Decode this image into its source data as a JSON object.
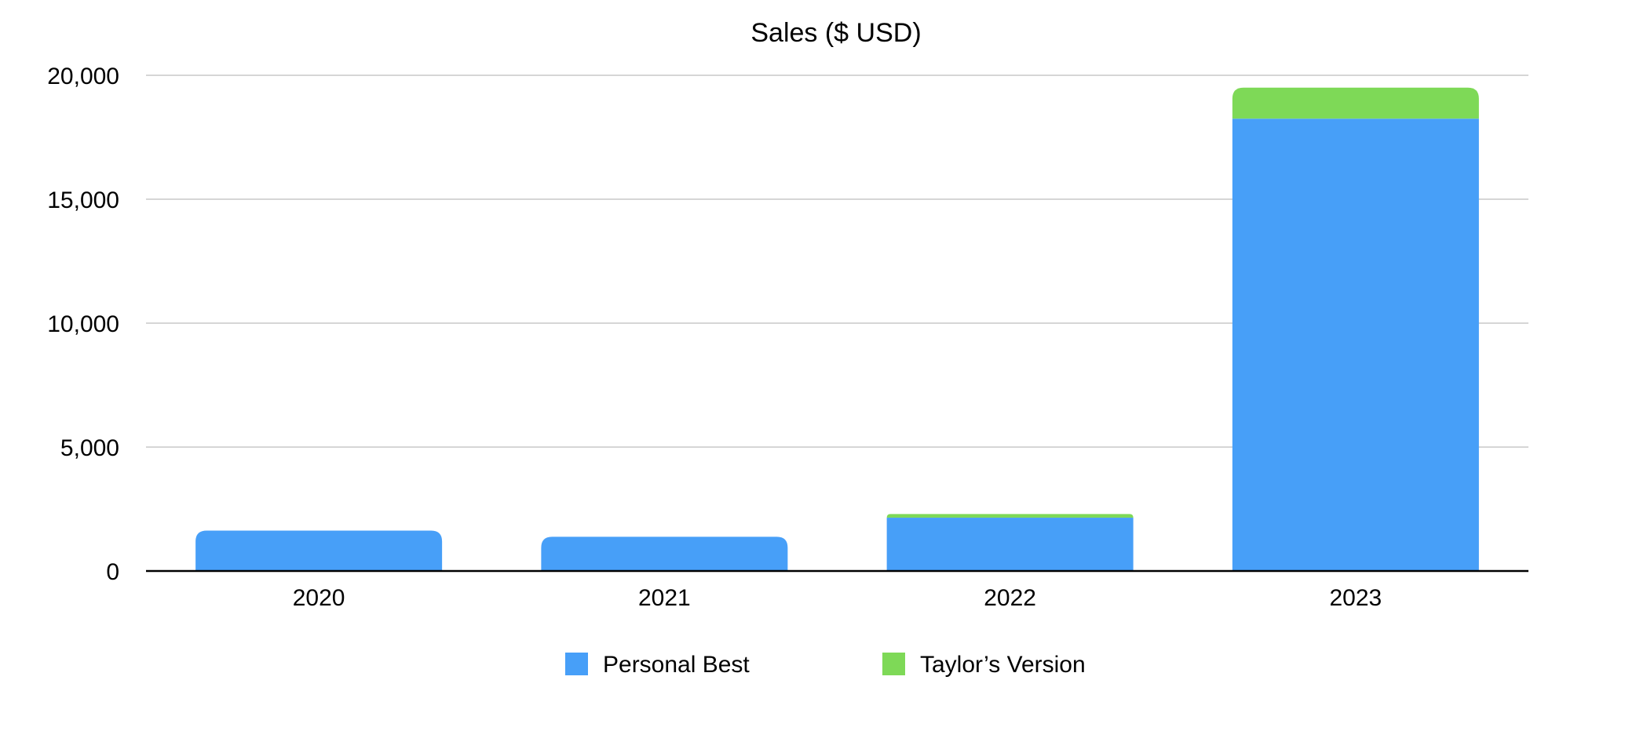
{
  "chart_data": {
    "type": "bar",
    "stacked": true,
    "title": "Sales ($ USD)",
    "xlabel": "",
    "ylabel": "",
    "categories": [
      "2020",
      "2021",
      "2022",
      "2023"
    ],
    "series": [
      {
        "name": "Personal Best",
        "color": "#479ff8",
        "values": [
          1630,
          1380,
          2150,
          18250
        ]
      },
      {
        "name": "Taylor’s Version",
        "color": "#7ed957",
        "values": [
          0,
          0,
          150,
          1250
        ]
      }
    ],
    "ylim": [
      0,
      20000
    ],
    "yticks": [
      0,
      5000,
      10000,
      15000,
      20000
    ],
    "ytick_labels": [
      "0",
      "5,000",
      "10,000",
      "15,000",
      "20,000"
    ],
    "grid": true,
    "legend_position": "bottom-center"
  }
}
